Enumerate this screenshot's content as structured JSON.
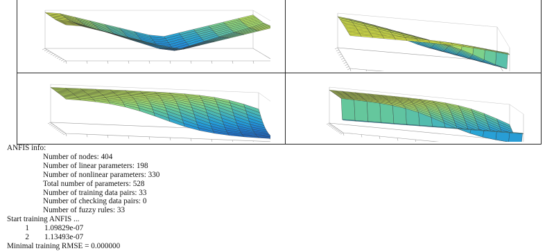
{
  "figure": {
    "panels": [
      {
        "id": "top-left",
        "shape": "valley",
        "colors": [
          "#f1ef3a",
          "#7fd28a",
          "#27a3d8",
          "#1b67d6"
        ]
      },
      {
        "id": "top-right",
        "shape": "ridge-drop",
        "colors": [
          "#f1ef3a",
          "#75cf90",
          "#2aa6d6",
          "#1a63d3"
        ]
      },
      {
        "id": "bottom-left",
        "shape": "slope-down-right",
        "colors": [
          "#d9ea4a",
          "#67c999",
          "#259fd8",
          "#1a58c9"
        ]
      },
      {
        "id": "bottom-right",
        "shape": "slope-with-shelf",
        "colors": [
          "#e5ec46",
          "#6ccb96",
          "#29a4d6",
          "#1a5fd0"
        ]
      }
    ]
  },
  "anfis": {
    "header": "ANFIS info:",
    "info_lines": [
      "Number of nodes: 404",
      "Number of linear parameters: 198",
      "Number of nonlinear parameters: 330",
      "Total number of parameters: 528",
      "Number of training data pairs: 33",
      "Number of checking data pairs: 0",
      "Number of fuzzy rules: 33"
    ],
    "start_line": "Start training ANFIS ...",
    "iterations": [
      {
        "n": "1",
        "value": "1.09829e-07"
      },
      {
        "n": "2",
        "value": "1.13493e-07"
      }
    ],
    "result_line": "Minimal training RMSE = 0.000000"
  }
}
